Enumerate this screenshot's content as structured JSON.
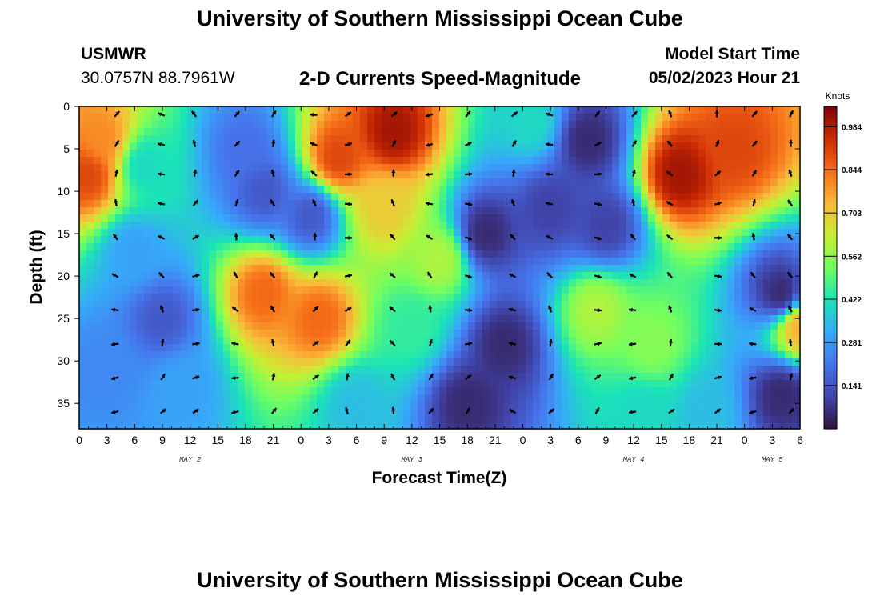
{
  "page": {
    "title_top": "University of Southern Mississippi Ocean Cube",
    "station": "USMWR",
    "coords": "30.0757N  88.7961W",
    "chart_title": "2-D Currents Speed-Magnitude",
    "model_label": "Model Start Time",
    "model_time": "05/02/2023 Hour 21",
    "title_bottom": "University of Southern Mississippi Ocean Cube"
  },
  "chart_data": {
    "type": "heatmap",
    "title": "2-D Currents Speed-Magnitude",
    "xlabel": "Forecast Time(Z)",
    "ylabel": "Depth (ft)",
    "x_range_hours": [
      0,
      78
    ],
    "xlim_note": "hours since 0Z May 2",
    "y_range_ft": [
      0,
      38
    ],
    "x_tick_labels": [
      "0",
      "3",
      "6",
      "9",
      "12",
      "15",
      "18",
      "21",
      "0",
      "3",
      "6",
      "9",
      "12",
      "15",
      "18",
      "21",
      "0",
      "3",
      "6",
      "9",
      "12",
      "15",
      "18",
      "21",
      "0",
      "3",
      "6"
    ],
    "y_tick_values": [
      0,
      5,
      10,
      15,
      20,
      25,
      30,
      35
    ],
    "date_labels": [
      {
        "text": "MAY 2",
        "hour": 12
      },
      {
        "text": "MAY 3",
        "hour": 36
      },
      {
        "text": "MAY 4",
        "hour": 60
      },
      {
        "text": "MAY 5",
        "hour": 75
      }
    ],
    "colorbar": {
      "label": "Knots",
      "min": 0.0,
      "max": 1.05,
      "ticks": [
        0.984,
        0.844,
        0.703,
        0.562,
        0.422,
        0.281,
        0.141
      ]
    },
    "speed_features": [
      {
        "hour": 1,
        "depth": 8,
        "speed": 0.9
      },
      {
        "hour": 2.5,
        "depth": 4,
        "speed": 0.8
      },
      {
        "hour": 7,
        "depth": 7,
        "speed": 0.4
      },
      {
        "hour": 18,
        "depth": 5,
        "speed": 0.2
      },
      {
        "hour": 20,
        "depth": 10,
        "speed": 0.15
      },
      {
        "hour": 6,
        "depth": 17,
        "speed": 0.3
      },
      {
        "hour": 9,
        "depth": 25,
        "speed": 0.15
      },
      {
        "hour": 20,
        "depth": 22,
        "speed": 0.85
      },
      {
        "hour": 26,
        "depth": 25,
        "speed": 0.85
      },
      {
        "hour": 28,
        "depth": 6,
        "speed": 0.9
      },
      {
        "hour": 34,
        "depth": 3,
        "speed": 1.0
      },
      {
        "hour": 33,
        "depth": 12,
        "speed": 0.7
      },
      {
        "hour": 25,
        "depth": 13,
        "speed": 0.15
      },
      {
        "hour": 39,
        "depth": 18,
        "speed": 0.6
      },
      {
        "hour": 30,
        "depth": 35,
        "speed": 0.35
      },
      {
        "hour": 42,
        "depth": 35,
        "speed": 0.05
      },
      {
        "hour": 46,
        "depth": 28,
        "speed": 0.05
      },
      {
        "hour": 44,
        "depth": 15,
        "speed": 0.05
      },
      {
        "hour": 51,
        "depth": 12,
        "speed": 0.1
      },
      {
        "hour": 49,
        "depth": 2,
        "speed": 0.4
      },
      {
        "hour": 55,
        "depth": 4,
        "speed": 0.05
      },
      {
        "hour": 57,
        "depth": 14,
        "speed": 0.1
      },
      {
        "hour": 56,
        "depth": 24,
        "speed": 0.6
      },
      {
        "hour": 62,
        "depth": 28,
        "speed": 0.55
      },
      {
        "hour": 65,
        "depth": 8,
        "speed": 1.0
      },
      {
        "hour": 71,
        "depth": 5,
        "speed": 0.9
      },
      {
        "hour": 76,
        "depth": 22,
        "speed": 0.05
      },
      {
        "hour": 76,
        "depth": 34,
        "speed": 0.05
      },
      {
        "hour": 78,
        "depth": 26,
        "speed": 0.75
      },
      {
        "hour": 3,
        "depth": 31,
        "speed": 0.25
      },
      {
        "hour": 11,
        "depth": 33,
        "speed": 0.3
      },
      {
        "hour": 68,
        "depth": 36,
        "speed": 0.35
      },
      {
        "hour": 36,
        "depth": 26,
        "speed": 0.45
      },
      {
        "hour": 61,
        "depth": 36,
        "speed": 0.4
      }
    ],
    "arrow_grid": {
      "hours": [
        4,
        9,
        12.5,
        17,
        21,
        25.5,
        29,
        34,
        38,
        42,
        47,
        51,
        56,
        60,
        64,
        69,
        73,
        77
      ],
      "depths": [
        1,
        4.5,
        8,
        11.5,
        15.5,
        20,
        24,
        28,
        32,
        36
      ]
    }
  }
}
